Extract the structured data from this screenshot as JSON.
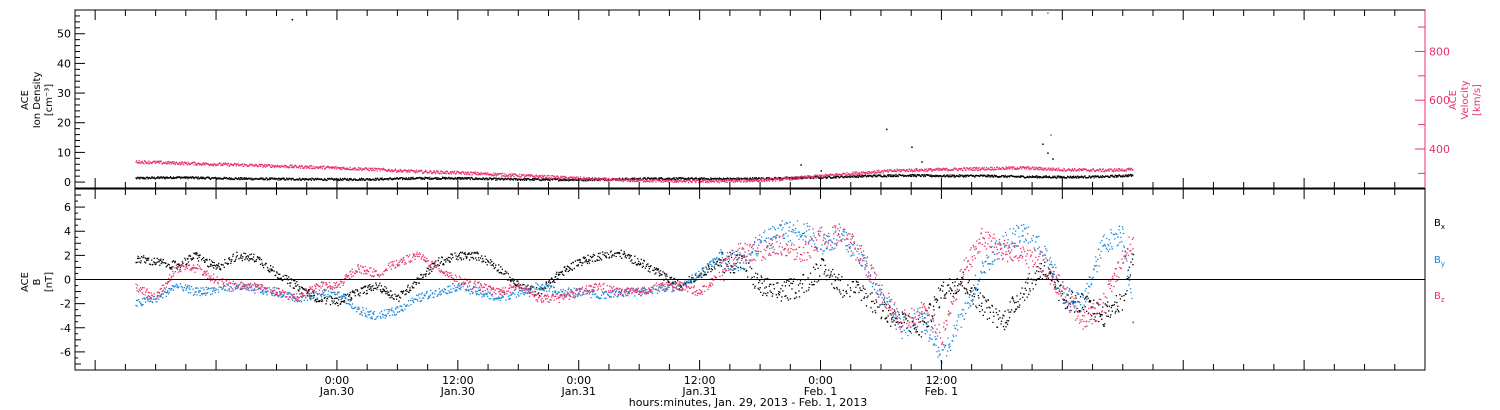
{
  "colors": {
    "black": "#000000",
    "pink": "#e8336a",
    "blue": "#1a86d6",
    "axis": "#000000"
  },
  "chart_data": [
    {
      "type": "scatter",
      "panel": "top",
      "left_axis": {
        "label_line1": "ACE",
        "label_line2": "Ion Density",
        "label_line3": "[cm⁻³]",
        "ticks": [
          0,
          10,
          20,
          30,
          40,
          50
        ],
        "ylim": [
          -2,
          58
        ]
      },
      "right_axis": {
        "label_line1": "ACE",
        "label_line2": "Velocity",
        "label_line3": "[km/s]",
        "ticks": [
          400,
          600,
          800
        ],
        "ylim": [
          240,
          970
        ],
        "color": "#e8336a"
      },
      "series": [
        {
          "name": "density",
          "color": "#000000",
          "axis": "left",
          "x": [
            -20,
            -16,
            -12,
            -8,
            -4,
            0,
            4,
            8,
            12,
            16,
            20,
            24,
            28,
            32,
            36,
            40,
            44,
            48,
            52,
            56,
            60,
            64,
            68,
            72,
            76,
            79
          ],
          "values": [
            1.5,
            1.8,
            1.5,
            1.3,
            1.2,
            1.1,
            1.2,
            1.5,
            1.5,
            1.2,
            1.1,
            1.0,
            1.2,
            1.4,
            1.3,
            1.3,
            1.5,
            1.8,
            2.2,
            2.5,
            2.3,
            2.3,
            2.0,
            1.9,
            2.0,
            2.5
          ],
          "outliers": [
            [
              -4.5,
              55
            ],
            [
              54.5,
              18
            ],
            [
              57,
              12
            ],
            [
              58,
              7
            ],
            [
              70,
              13
            ],
            [
              70.5,
              10
            ],
            [
              71,
              8
            ],
            [
              46,
              6
            ],
            [
              48,
              4
            ]
          ]
        },
        {
          "name": "velocity",
          "color": "#e8336a",
          "axis": "right",
          "x": [
            -20,
            -16,
            -12,
            -8,
            -4,
            0,
            4,
            8,
            12,
            16,
            20,
            24,
            28,
            32,
            36,
            40,
            44,
            48,
            52,
            56,
            60,
            64,
            68,
            72,
            76,
            79
          ],
          "values": [
            350,
            345,
            340,
            335,
            330,
            325,
            318,
            310,
            305,
            298,
            290,
            282,
            275,
            272,
            270,
            272,
            278,
            292,
            305,
            315,
            318,
            322,
            325,
            318,
            315,
            318
          ],
          "outliers": [
            [
              70.5,
              960
            ],
            [
              70.8,
              460
            ]
          ]
        }
      ]
    },
    {
      "type": "scatter",
      "panel": "bottom",
      "left_axis": {
        "label_line1": "ACE",
        "label_line2": "B",
        "label_line3": "[nT]",
        "ticks": [
          -6,
          -4,
          -2,
          0,
          2,
          4,
          6
        ],
        "ylim": [
          -7.5,
          7.5
        ]
      },
      "legend": {
        "placement": "right",
        "items": [
          {
            "base": "B",
            "sub": "x",
            "color": "#000000"
          },
          {
            "base": "B",
            "sub": "y",
            "color": "#1a86d6"
          },
          {
            "base": "B",
            "sub": "z",
            "color": "#e8336a"
          }
        ]
      },
      "zero_line": true,
      "series": [
        {
          "name": "Bx",
          "color": "#000000",
          "x": [
            -20,
            -18,
            -16,
            -14,
            -12,
            -10,
            -8,
            -6,
            -4,
            -2,
            0,
            2,
            4,
            6,
            8,
            10,
            12,
            14,
            16,
            18,
            20,
            22,
            24,
            26,
            28,
            30,
            32,
            34,
            36,
            38,
            40,
            42,
            44,
            46,
            48,
            50,
            52,
            54,
            56,
            58,
            60,
            62,
            64,
            66,
            68,
            70,
            72,
            74,
            76,
            78,
            79
          ],
          "values": [
            1.8,
            1.5,
            1.2,
            2.0,
            1.0,
            2.0,
            1.8,
            0.5,
            -0.5,
            -1.5,
            -1.8,
            -1.0,
            -0.5,
            -1.5,
            0.0,
            1.5,
            2.0,
            2.0,
            1.0,
            -0.5,
            -1.0,
            0.5,
            1.5,
            2.0,
            2.2,
            1.5,
            0.5,
            -0.5,
            0.5,
            1.5,
            1.5,
            -0.5,
            -1.0,
            -0.5,
            1.0,
            -0.5,
            -1.0,
            -2.5,
            -3.5,
            -4.0,
            -1.0,
            0.0,
            -2.0,
            -3.5,
            -1.0,
            1.0,
            -1.5,
            -2.0,
            -3.0,
            -1.5,
            2.0
          ]
        },
        {
          "name": "By",
          "color": "#1a86d6",
          "x": [
            -20,
            -18,
            -16,
            -14,
            -12,
            -10,
            -8,
            -6,
            -4,
            -2,
            0,
            2,
            4,
            6,
            8,
            10,
            12,
            14,
            16,
            18,
            20,
            22,
            24,
            26,
            28,
            30,
            32,
            34,
            36,
            38,
            40,
            42,
            44,
            46,
            48,
            50,
            52,
            54,
            56,
            58,
            60,
            62,
            64,
            66,
            68,
            70,
            72,
            74,
            76,
            78,
            79
          ],
          "values": [
            -2.0,
            -1.5,
            -0.5,
            -1.0,
            -0.8,
            -0.5,
            -0.8,
            -1.0,
            -1.5,
            -1.2,
            -1.0,
            -2.5,
            -3.0,
            -2.5,
            -1.5,
            -1.0,
            -0.5,
            -1.0,
            -1.5,
            -1.0,
            -0.5,
            -1.0,
            -1.0,
            -1.2,
            -1.0,
            -1.0,
            -0.8,
            -0.5,
            0.5,
            2.0,
            1.5,
            3.0,
            4.0,
            4.2,
            3.0,
            3.5,
            2.0,
            -1.0,
            -4.0,
            -3.0,
            -6.5,
            -3.0,
            1.0,
            3.0,
            4.0,
            2.5,
            -1.0,
            -2.0,
            3.0,
            4.0,
            -3.0
          ]
        },
        {
          "name": "Bz",
          "color": "#e8336a",
          "x": [
            -20,
            -18,
            -16,
            -14,
            -12,
            -10,
            -8,
            -6,
            -4,
            -2,
            0,
            2,
            4,
            6,
            8,
            10,
            12,
            14,
            16,
            18,
            20,
            22,
            24,
            26,
            28,
            30,
            32,
            34,
            36,
            38,
            40,
            42,
            44,
            46,
            48,
            50,
            52,
            54,
            56,
            58,
            60,
            62,
            64,
            66,
            68,
            70,
            72,
            74,
            76,
            78,
            79
          ],
          "values": [
            -0.5,
            -1.5,
            1.0,
            1.0,
            0.0,
            -0.5,
            -0.5,
            -1.0,
            -1.5,
            -0.5,
            -0.5,
            1.0,
            0.5,
            1.5,
            2.0,
            1.0,
            0.0,
            -0.5,
            -1.0,
            -0.5,
            -1.5,
            -1.5,
            -1.0,
            -0.5,
            -1.0,
            -1.0,
            -0.5,
            -0.5,
            -1.0,
            0.5,
            2.5,
            2.5,
            3.0,
            2.0,
            3.5,
            4.0,
            2.0,
            -1.0,
            -3.5,
            -2.5,
            -4.5,
            0.5,
            3.5,
            2.5,
            2.0,
            1.5,
            -1.0,
            -3.5,
            -2.0,
            2.0,
            3.5
          ]
        }
      ]
    }
  ],
  "x_axis": {
    "xlim": [
      -26,
      108
    ],
    "major_ticks": [
      {
        "x": 0,
        "time": "0:00",
        "date": "Jan.30"
      },
      {
        "x": 12,
        "time": "12:00",
        "date": "Jan.30"
      },
      {
        "x": 24,
        "time": "0:00",
        "date": "Jan.31"
      },
      {
        "x": 36,
        "time": "12:00",
        "date": "Jan.31"
      },
      {
        "x": 48,
        "time": "0:00",
        "date": "Feb. 1"
      },
      {
        "x": 60,
        "time": "12:00",
        "date": "Feb. 1"
      }
    ],
    "title": "hours:minutes, Jan. 29, 2013 - Feb.  1, 2013"
  }
}
